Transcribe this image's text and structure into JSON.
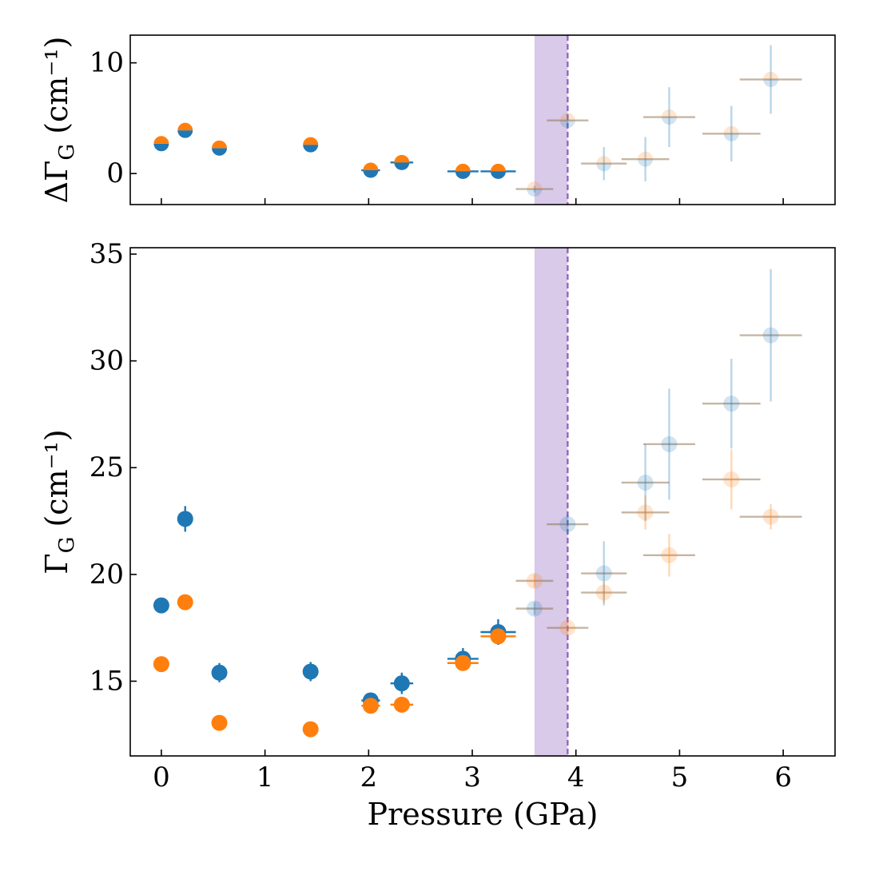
{
  "chart_data": [
    {
      "type": "scatter",
      "panel": "top",
      "ylabel": "ΔΓ_G (cm⁻¹)",
      "xlabel": "",
      "xlim": [
        -0.3,
        6.5
      ],
      "ylim": [
        -2.8,
        12.5
      ],
      "xticks": [
        "0",
        "1",
        "2",
        "3",
        "4",
        "5",
        "6"
      ],
      "yticks": [
        {
          "value": 0,
          "label": "0"
        },
        {
          "value": 10,
          "label": "10"
        }
      ],
      "phase_band": {
        "x_start": 3.6,
        "x_end": 3.92,
        "color": "#cbb8e0"
      },
      "phase_line": {
        "x": 3.92,
        "color": "#9467bd"
      },
      "series": [
        {
          "name": "ΔΓ_G",
          "colors": [
            "#1f77b4",
            "#ff7f0e"
          ],
          "points": [
            {
              "x": 0.0,
              "y": 2.7,
              "xerr": 0,
              "yerr": 0,
              "faded": false
            },
            {
              "x": 0.23,
              "y": 3.9,
              "xerr": 0,
              "yerr": 0,
              "faded": false
            },
            {
              "x": 0.56,
              "y": 2.3,
              "xerr": 0,
              "yerr": 0,
              "faded": false
            },
            {
              "x": 1.44,
              "y": 2.6,
              "xerr": 0,
              "yerr": 0,
              "faded": false
            },
            {
              "x": 2.02,
              "y": 0.3,
              "xerr": 0.09,
              "yerr": 0,
              "faded": false
            },
            {
              "x": 2.32,
              "y": 1.0,
              "xerr": 0.11,
              "yerr": 0,
              "faded": false
            },
            {
              "x": 2.91,
              "y": 0.2,
              "xerr": 0.15,
              "yerr": 0,
              "faded": false
            },
            {
              "x": 3.25,
              "y": 0.2,
              "xerr": 0.17,
              "yerr": 0.4,
              "faded": false
            },
            {
              "x": 3.6,
              "y": -1.4,
              "xerr": 0.18,
              "yerr": 0.3,
              "faded": true
            },
            {
              "x": 3.92,
              "y": 4.8,
              "xerr": 0.2,
              "yerr": 0.6,
              "faded": true
            },
            {
              "x": 4.27,
              "y": 0.9,
              "xerr": 0.22,
              "yerr": 1.5,
              "faded": true
            },
            {
              "x": 4.67,
              "y": 1.3,
              "xerr": 0.23,
              "yerr": 2.0,
              "faded": true
            },
            {
              "x": 4.9,
              "y": 5.1,
              "xerr": 0.25,
              "yerr": 2.7,
              "faded": true
            },
            {
              "x": 5.5,
              "y": 3.6,
              "xerr": 0.28,
              "yerr": 2.5,
              "faded": true
            },
            {
              "x": 5.88,
              "y": 8.5,
              "xerr": 0.3,
              "yerr": 3.1,
              "faded": true
            }
          ]
        }
      ]
    },
    {
      "type": "scatter",
      "panel": "bottom",
      "ylabel": "Γ_G (cm⁻¹)",
      "xlabel": "Pressure (GPa)",
      "xlim": [
        -0.3,
        6.5
      ],
      "ylim": [
        11.5,
        35.3
      ],
      "xticks": [
        "0",
        "1",
        "2",
        "3",
        "4",
        "5",
        "6"
      ],
      "yticks": [
        {
          "value": 15,
          "label": "15"
        },
        {
          "value": 20,
          "label": "20"
        },
        {
          "value": 25,
          "label": "25"
        },
        {
          "value": 30,
          "label": "30"
        },
        {
          "value": 35,
          "label": "35"
        }
      ],
      "phase_band": {
        "x_start": 3.6,
        "x_end": 3.92,
        "color": "#cbb8e0"
      },
      "phase_line": {
        "x": 3.92,
        "color": "#9467bd"
      },
      "series": [
        {
          "name": "blue",
          "color": "#1f77b4",
          "points": [
            {
              "x": 0.0,
              "y": 18.55,
              "xerr": 0,
              "yerr": 0,
              "faded": false
            },
            {
              "x": 0.23,
              "y": 22.6,
              "xerr": 0,
              "yerr": 0.6,
              "faded": false
            },
            {
              "x": 0.56,
              "y": 15.4,
              "xerr": 0,
              "yerr": 0.45,
              "faded": false
            },
            {
              "x": 1.44,
              "y": 15.45,
              "xerr": 0,
              "yerr": 0.45,
              "faded": false
            },
            {
              "x": 2.02,
              "y": 14.1,
              "xerr": 0.09,
              "yerr": 0.3,
              "faded": false
            },
            {
              "x": 2.32,
              "y": 14.9,
              "xerr": 0.11,
              "yerr": 0.5,
              "faded": false
            },
            {
              "x": 2.91,
              "y": 16.05,
              "xerr": 0.15,
              "yerr": 0.5,
              "faded": false
            },
            {
              "x": 3.25,
              "y": 17.3,
              "xerr": 0.17,
              "yerr": 0.6,
              "faded": false
            },
            {
              "x": 3.6,
              "y": 18.4,
              "xerr": 0.18,
              "yerr": 0.3,
              "faded": true
            },
            {
              "x": 3.92,
              "y": 22.35,
              "xerr": 0.2,
              "yerr": 0.5,
              "faded": true
            },
            {
              "x": 4.27,
              "y": 20.05,
              "xerr": 0.22,
              "yerr": 1.5,
              "faded": true
            },
            {
              "x": 4.67,
              "y": 24.3,
              "xerr": 0.23,
              "yerr": 1.8,
              "faded": true
            },
            {
              "x": 4.9,
              "y": 26.1,
              "xerr": 0.25,
              "yerr": 2.6,
              "faded": true
            },
            {
              "x": 5.5,
              "y": 28.0,
              "xerr": 0.28,
              "yerr": 2.1,
              "faded": true
            },
            {
              "x": 5.88,
              "y": 31.2,
              "xerr": 0.3,
              "yerr": 3.1,
              "faded": true
            }
          ]
        },
        {
          "name": "orange",
          "color": "#ff7f0e",
          "points": [
            {
              "x": 0.0,
              "y": 15.8,
              "xerr": 0,
              "yerr": 0,
              "faded": false
            },
            {
              "x": 0.23,
              "y": 18.7,
              "xerr": 0,
              "yerr": 0,
              "faded": false
            },
            {
              "x": 0.56,
              "y": 13.05,
              "xerr": 0,
              "yerr": 0,
              "faded": false
            },
            {
              "x": 1.44,
              "y": 12.75,
              "xerr": 0,
              "yerr": 0,
              "faded": false
            },
            {
              "x": 2.02,
              "y": 13.85,
              "xerr": 0.09,
              "yerr": 0,
              "faded": false
            },
            {
              "x": 2.32,
              "y": 13.9,
              "xerr": 0.11,
              "yerr": 0,
              "faded": false
            },
            {
              "x": 2.91,
              "y": 15.85,
              "xerr": 0.15,
              "yerr": 0.3,
              "faded": false
            },
            {
              "x": 3.25,
              "y": 17.1,
              "xerr": 0.17,
              "yerr": 0.3,
              "faded": false
            },
            {
              "x": 3.6,
              "y": 19.7,
              "xerr": 0.18,
              "yerr": 0.3,
              "faded": true
            },
            {
              "x": 3.92,
              "y": 17.5,
              "xerr": 0.2,
              "yerr": 0.3,
              "faded": true
            },
            {
              "x": 4.27,
              "y": 19.15,
              "xerr": 0.22,
              "yerr": 0.5,
              "faded": true
            },
            {
              "x": 4.67,
              "y": 22.9,
              "xerr": 0.23,
              "yerr": 0.8,
              "faded": true
            },
            {
              "x": 4.9,
              "y": 20.9,
              "xerr": 0.25,
              "yerr": 1.0,
              "faded": true
            },
            {
              "x": 5.5,
              "y": 24.45,
              "xerr": 0.28,
              "yerr": 1.4,
              "faded": true
            },
            {
              "x": 5.88,
              "y": 22.7,
              "xerr": 0.3,
              "yerr": 0.6,
              "faded": true
            }
          ]
        }
      ]
    }
  ]
}
